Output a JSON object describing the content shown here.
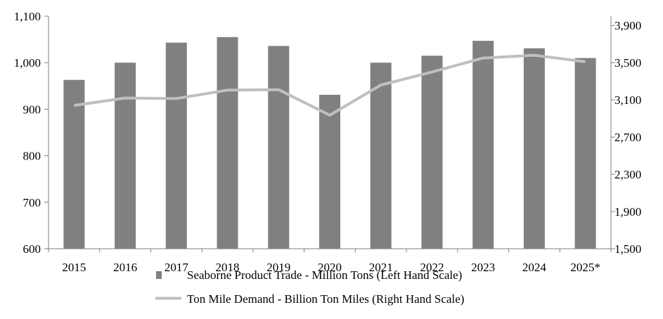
{
  "chart_data": {
    "type": "bar",
    "categories": [
      "2015",
      "2016",
      "2017",
      "2018",
      "2019",
      "2020",
      "2021",
      "2022",
      "2023",
      "2024",
      "2025*"
    ],
    "series": [
      {
        "name": "Seaborne Product Trade - Million Tons (Left Hand Scale)",
        "type": "bar",
        "axis": "left",
        "color": "#808080",
        "values": [
          963,
          1000,
          1043,
          1055,
          1036,
          931,
          1000,
          1015,
          1047,
          1031,
          1010
        ]
      },
      {
        "name": "Ton Mile Demand - Billion Ton Miles (Right Hand Scale)",
        "type": "line",
        "axis": "right",
        "color": "#bfbfbf",
        "values": [
          3040,
          3120,
          3115,
          3205,
          3210,
          2935,
          3260,
          3400,
          3550,
          3580,
          3510
        ]
      }
    ],
    "y_left": {
      "lim": [
        600,
        1100
      ],
      "ticks": [
        600,
        700,
        800,
        900,
        1000,
        1100
      ],
      "tick_labels": [
        "600",
        "700",
        "800",
        "900",
        "1,000",
        "1,100"
      ]
    },
    "y_right": {
      "lim": [
        1500,
        4000
      ],
      "ticks": [
        1500,
        1900,
        2300,
        2700,
        3100,
        3500,
        3900
      ],
      "tick_labels": [
        "1,500",
        "1,900",
        "2,300",
        "2,700",
        "3,100",
        "3,500",
        "3,900"
      ]
    },
    "grid": false,
    "legend_position": "bottom"
  }
}
